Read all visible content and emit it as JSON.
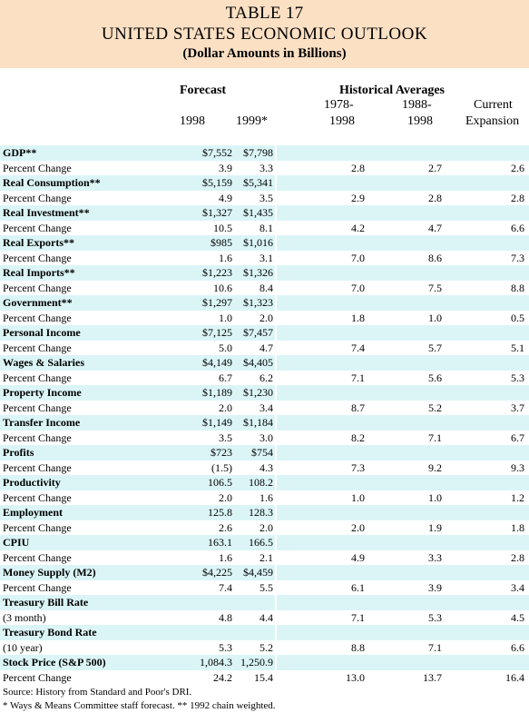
{
  "title": {
    "line1": "TABLE 17",
    "line2": "UNITED STATES ECONOMIC OUTLOOK",
    "line3": "(Dollar Amounts in Billions)"
  },
  "headers": {
    "forecast": "Forecast",
    "historical": "Historical Averages",
    "y1998": "1998",
    "y1999": "1999*",
    "h1a": "1978-",
    "h1b": "1998",
    "h2a": "1988-",
    "h2b": "1998",
    "h3a": "Current",
    "h3b": "Expansion"
  },
  "rows": [
    {
      "label": "GDP**",
      "bold": true,
      "v1998": "$7,552",
      "v1999": "$7,798",
      "h1": "",
      "h2": "",
      "h3": ""
    },
    {
      "label": "Percent Change",
      "bold": false,
      "v1998": "3.9",
      "v1999": "3.3",
      "h1": "2.8",
      "h2": "2.7",
      "h3": "2.6"
    },
    {
      "label": "Real Consumption**",
      "bold": true,
      "v1998": "$5,159",
      "v1999": "$5,341",
      "h1": "",
      "h2": "",
      "h3": ""
    },
    {
      "label": "Percent Change",
      "bold": false,
      "v1998": "4.9",
      "v1999": "3.5",
      "h1": "2.9",
      "h2": "2.8",
      "h3": "2.8"
    },
    {
      "label": "Real Investment**",
      "bold": true,
      "v1998": "$1,327",
      "v1999": "$1,435",
      "h1": "",
      "h2": "",
      "h3": ""
    },
    {
      "label": "Percent Change",
      "bold": false,
      "v1998": "10.5",
      "v1999": "8.1",
      "h1": "4.2",
      "h2": "4.7",
      "h3": "6.6"
    },
    {
      "label": "Real Exports**",
      "bold": true,
      "v1998": "$985",
      "v1999": "$1,016",
      "h1": "",
      "h2": "",
      "h3": ""
    },
    {
      "label": "Percent Change",
      "bold": false,
      "v1998": "1.6",
      "v1999": "3.1",
      "h1": "7.0",
      "h2": "8.6",
      "h3": "7.3"
    },
    {
      "label": "Real Imports**",
      "bold": true,
      "v1998": "$1,223",
      "v1999": "$1,326",
      "h1": "",
      "h2": "",
      "h3": ""
    },
    {
      "label": "Percent Change",
      "bold": false,
      "v1998": "10.6",
      "v1999": "8.4",
      "h1": "7.0",
      "h2": "7.5",
      "h3": "8.8"
    },
    {
      "label": "Government**",
      "bold": true,
      "v1998": "$1,297",
      "v1999": "$1,323",
      "h1": "",
      "h2": "",
      "h3": ""
    },
    {
      "label": "Percent Change",
      "bold": false,
      "v1998": "1.0",
      "v1999": "2.0",
      "h1": "1.8",
      "h2": "1.0",
      "h3": "0.5"
    },
    {
      "label": "Personal Income",
      "bold": true,
      "v1998": "$7,125",
      "v1999": "$7,457",
      "h1": "",
      "h2": "",
      "h3": ""
    },
    {
      "label": "Percent Change",
      "bold": false,
      "v1998": "5.0",
      "v1999": "4.7",
      "h1": "7.4",
      "h2": "5.7",
      "h3": "5.1"
    },
    {
      "label": "Wages & Salaries",
      "bold": true,
      "v1998": "$4,149",
      "v1999": "$4,405",
      "h1": "",
      "h2": "",
      "h3": ""
    },
    {
      "label": "Percent Change",
      "bold": false,
      "v1998": "6.7",
      "v1999": "6.2",
      "h1": "7.1",
      "h2": "5.6",
      "h3": "5.3"
    },
    {
      "label": "Property Income",
      "bold": true,
      "v1998": "$1,189",
      "v1999": "$1,230",
      "h1": "",
      "h2": "",
      "h3": ""
    },
    {
      "label": "Percent Change",
      "bold": false,
      "v1998": "2.0",
      "v1999": "3.4",
      "h1": "8.7",
      "h2": "5.2",
      "h3": "3.7"
    },
    {
      "label": "Transfer Income",
      "bold": true,
      "v1998": "$1,149",
      "v1999": "$1,184",
      "h1": "",
      "h2": "",
      "h3": ""
    },
    {
      "label": "Percent Change",
      "bold": false,
      "v1998": "3.5",
      "v1999": "3.0",
      "h1": "8.2",
      "h2": "7.1",
      "h3": "6.7"
    },
    {
      "label": "Profits",
      "bold": true,
      "v1998": "$723",
      "v1999": "$754",
      "h1": "",
      "h2": "",
      "h3": ""
    },
    {
      "label": "Percent Change",
      "bold": false,
      "v1998": "(1.5)",
      "v1999": "4.3",
      "h1": "7.3",
      "h2": "9.2",
      "h3": "9.3"
    },
    {
      "label": "Productivity",
      "bold": true,
      "v1998": "106.5",
      "v1999": "108.2",
      "h1": "",
      "h2": "",
      "h3": ""
    },
    {
      "label": "Percent Change",
      "bold": false,
      "v1998": "2.0",
      "v1999": "1.6",
      "h1": "1.0",
      "h2": "1.0",
      "h3": "1.2"
    },
    {
      "label": "Employment",
      "bold": true,
      "v1998": "125.8",
      "v1999": "128.3",
      "h1": "",
      "h2": "",
      "h3": ""
    },
    {
      "label": "Percent Change",
      "bold": false,
      "v1998": "2.6",
      "v1999": "2.0",
      "h1": "2.0",
      "h2": "1.9",
      "h3": "1.8"
    },
    {
      "label": "CPIU",
      "bold": true,
      "v1998": "163.1",
      "v1999": "166.5",
      "h1": "",
      "h2": "",
      "h3": ""
    },
    {
      "label": "Percent Change",
      "bold": false,
      "v1998": "1.6",
      "v1999": "2.1",
      "h1": "4.9",
      "h2": "3.3",
      "h3": "2.8"
    },
    {
      "label": "Money Supply (M2)",
      "bold": true,
      "v1998": "$4,225",
      "v1999": "$4,459",
      "h1": "",
      "h2": "",
      "h3": ""
    },
    {
      "label": "Percent Change",
      "bold": false,
      "v1998": "7.4",
      "v1999": "5.5",
      "h1": "6.1",
      "h2": "3.9",
      "h3": "3.4"
    },
    {
      "label": "Treasury Bill Rate",
      "bold": true,
      "v1998": "",
      "v1999": "",
      "h1": "",
      "h2": "",
      "h3": ""
    },
    {
      "label": "(3 month)",
      "bold": false,
      "v1998": "4.8",
      "v1999": "4.4",
      "h1": "7.1",
      "h2": "5.3",
      "h3": "4.5"
    },
    {
      "label": "Treasury Bond Rate",
      "bold": true,
      "v1998": "",
      "v1999": "",
      "h1": "",
      "h2": "",
      "h3": ""
    },
    {
      "label": "(10 year)",
      "bold": false,
      "v1998": "5.3",
      "v1999": "5.2",
      "h1": "8.8",
      "h2": "7.1",
      "h3": "6.6"
    },
    {
      "label": "Stock Price (S&P 500)",
      "bold": true,
      "v1998": "1,084.3",
      "v1999": "1,250.9",
      "h1": "",
      "h2": "",
      "h3": ""
    },
    {
      "label": "Percent Change",
      "bold": false,
      "v1998": "24.2",
      "v1999": "15.4",
      "h1": "13.0",
      "h2": "13.7",
      "h3": "16.4"
    }
  ],
  "footer": {
    "source": "Source:  History from Standard and Poor's DRI.",
    "note": "* Ways & Means Committee staff forecast.      ** 1992 chain weighted."
  }
}
